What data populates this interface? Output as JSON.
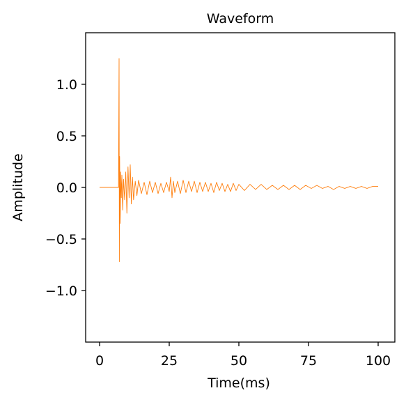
{
  "chart_data": {
    "type": "line",
    "title": "Waveform",
    "xlabel": "Time(ms)",
    "ylabel": "Amplitude",
    "xlim": [
      -5,
      106
    ],
    "ylim": [
      -1.5,
      1.5
    ],
    "xticks": [
      0,
      25,
      50,
      75,
      100
    ],
    "yticks": [
      1.0,
      0.5,
      0.0,
      -0.5,
      -1.0
    ],
    "xtick_labels": [
      "0",
      "25",
      "50",
      "75",
      "100"
    ],
    "ytick_labels": [
      "1.0",
      "0.5",
      "0.0",
      "−0.5",
      "−1.0"
    ],
    "grid": false,
    "series": [
      {
        "color": "#ff7f0e",
        "x": [
          0,
          2,
          4,
          6,
          6.8,
          7.0,
          7.1,
          7.2,
          7.4,
          7.6,
          7.8,
          8.0,
          8.3,
          8.6,
          9.0,
          9.4,
          9.8,
          10.2,
          10.6,
          11.0,
          11.4,
          11.8,
          12.2,
          12.8,
          13.4,
          14.0,
          15,
          16,
          17,
          18,
          19,
          20,
          21,
          22,
          23,
          24,
          25,
          25.5,
          26,
          26.5,
          27,
          28,
          29,
          30,
          31,
          32,
          33,
          34,
          35,
          36,
          37,
          38,
          39,
          40,
          41,
          42,
          43,
          44,
          45,
          46,
          47,
          48,
          49,
          50,
          52,
          54,
          56,
          58,
          60,
          62,
          64,
          66,
          68,
          70,
          72,
          74,
          76,
          78,
          80,
          82,
          84,
          86,
          88,
          90,
          92,
          94,
          96,
          98,
          100
        ],
        "y": [
          0,
          0,
          0,
          0,
          0,
          1.25,
          -0.72,
          0.3,
          -0.35,
          0.15,
          -0.1,
          0.12,
          -0.22,
          0.08,
          -0.12,
          0.15,
          -0.25,
          0.2,
          -0.1,
          0.22,
          -0.16,
          0.1,
          -0.12,
          0.06,
          -0.08,
          0.07,
          -0.06,
          0.05,
          -0.07,
          0.06,
          -0.05,
          0.05,
          -0.06,
          0.04,
          -0.05,
          0.05,
          -0.04,
          0.1,
          -0.1,
          0.06,
          -0.05,
          0.06,
          -0.06,
          0.07,
          -0.05,
          0.06,
          -0.04,
          0.06,
          -0.05,
          0.05,
          -0.04,
          0.05,
          -0.04,
          0.04,
          -0.05,
          0.05,
          -0.03,
          0.04,
          -0.04,
          0.03,
          -0.04,
          0.04,
          -0.03,
          0.03,
          -0.03,
          0.03,
          -0.02,
          0.03,
          -0.02,
          0.02,
          -0.02,
          0.02,
          -0.02,
          0.02,
          -0.02,
          0.02,
          -0.01,
          0.02,
          -0.01,
          0.01,
          -0.02,
          0.01,
          -0.01,
          0.01,
          -0.01,
          0.01,
          -0.01,
          0.01,
          0.01
        ]
      }
    ]
  }
}
